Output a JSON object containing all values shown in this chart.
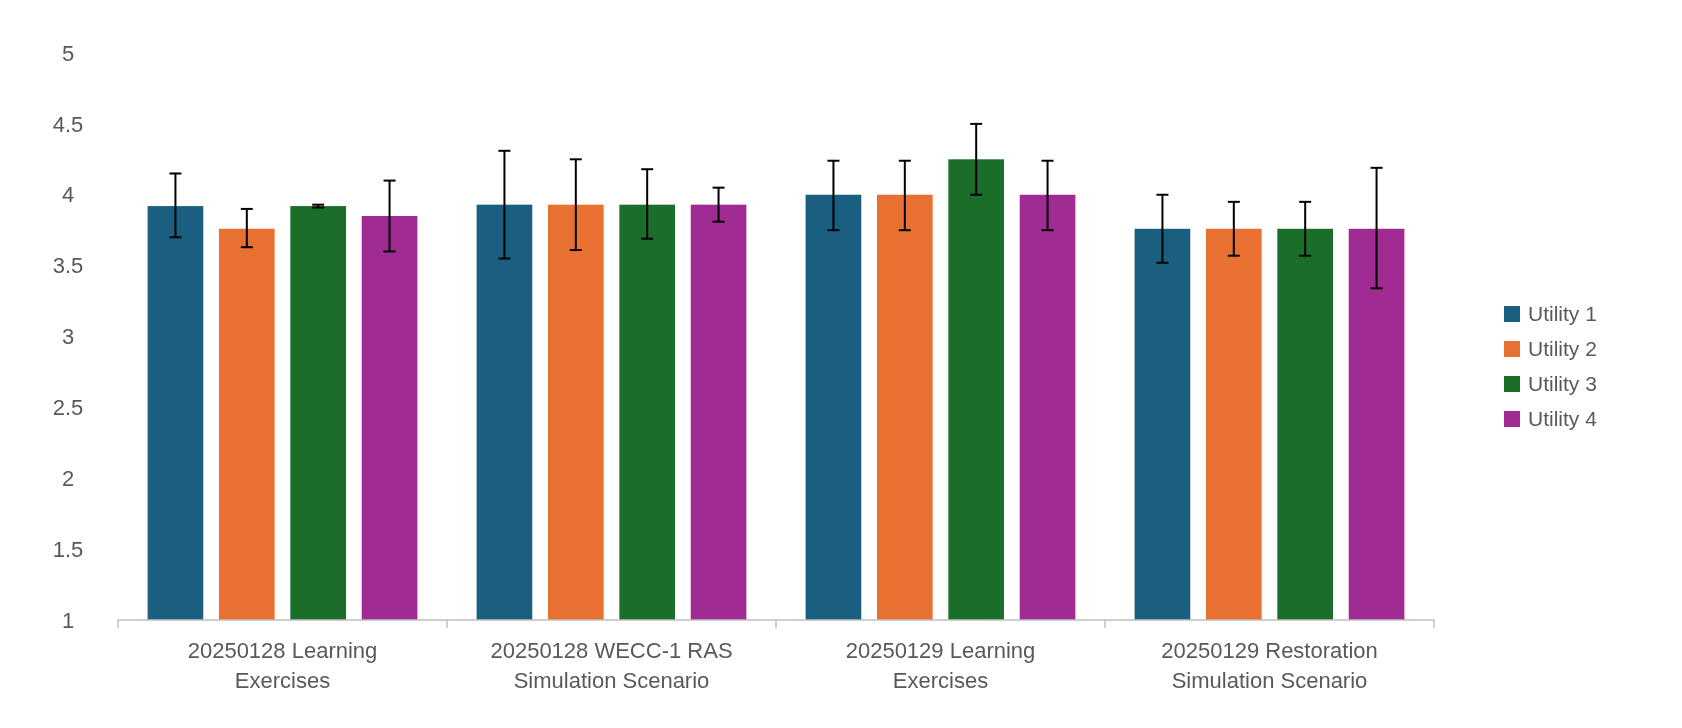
{
  "chart_data": {
    "type": "bar",
    "categories": [
      "20250128 Learning Exercises",
      "20250128 WECC-1 RAS Simulation Scenario",
      "20250129 Learning Exercises",
      "20250129 Restoration Simulation Scenario"
    ],
    "series": [
      {
        "name": "Utility 1",
        "color": "#1a5e80",
        "values": [
          3.92,
          3.93,
          4.0,
          3.76
        ],
        "errors": [
          [
            3.7,
            4.15
          ],
          [
            3.55,
            4.31
          ],
          [
            3.75,
            4.24
          ],
          [
            3.52,
            4.0
          ]
        ]
      },
      {
        "name": "Utility 2",
        "color": "#e87132",
        "values": [
          3.76,
          3.93,
          4.0,
          3.76
        ],
        "errors": [
          [
            3.63,
            3.9
          ],
          [
            3.61,
            4.25
          ],
          [
            3.75,
            4.24
          ],
          [
            3.57,
            3.95
          ]
        ]
      },
      {
        "name": "Utility 3",
        "color": "#1b6e2a",
        "values": [
          3.92,
          3.93,
          4.25,
          3.76
        ],
        "errors": [
          [
            3.91,
            3.93
          ],
          [
            3.69,
            4.18
          ],
          [
            4.0,
            4.5
          ],
          [
            3.57,
            3.95
          ]
        ]
      },
      {
        "name": "Utility 4",
        "color": "#a02b93",
        "values": [
          3.85,
          3.93,
          4.0,
          3.76
        ],
        "errors": [
          [
            3.6,
            4.1
          ],
          [
            3.81,
            4.05
          ],
          [
            3.75,
            4.24
          ],
          [
            3.34,
            4.19
          ]
        ]
      }
    ],
    "ylim": [
      1,
      5
    ],
    "yticks": [
      1,
      1.5,
      2,
      2.5,
      3,
      3.5,
      4,
      4.5,
      5
    ],
    "grid": false,
    "legend": "right"
  }
}
